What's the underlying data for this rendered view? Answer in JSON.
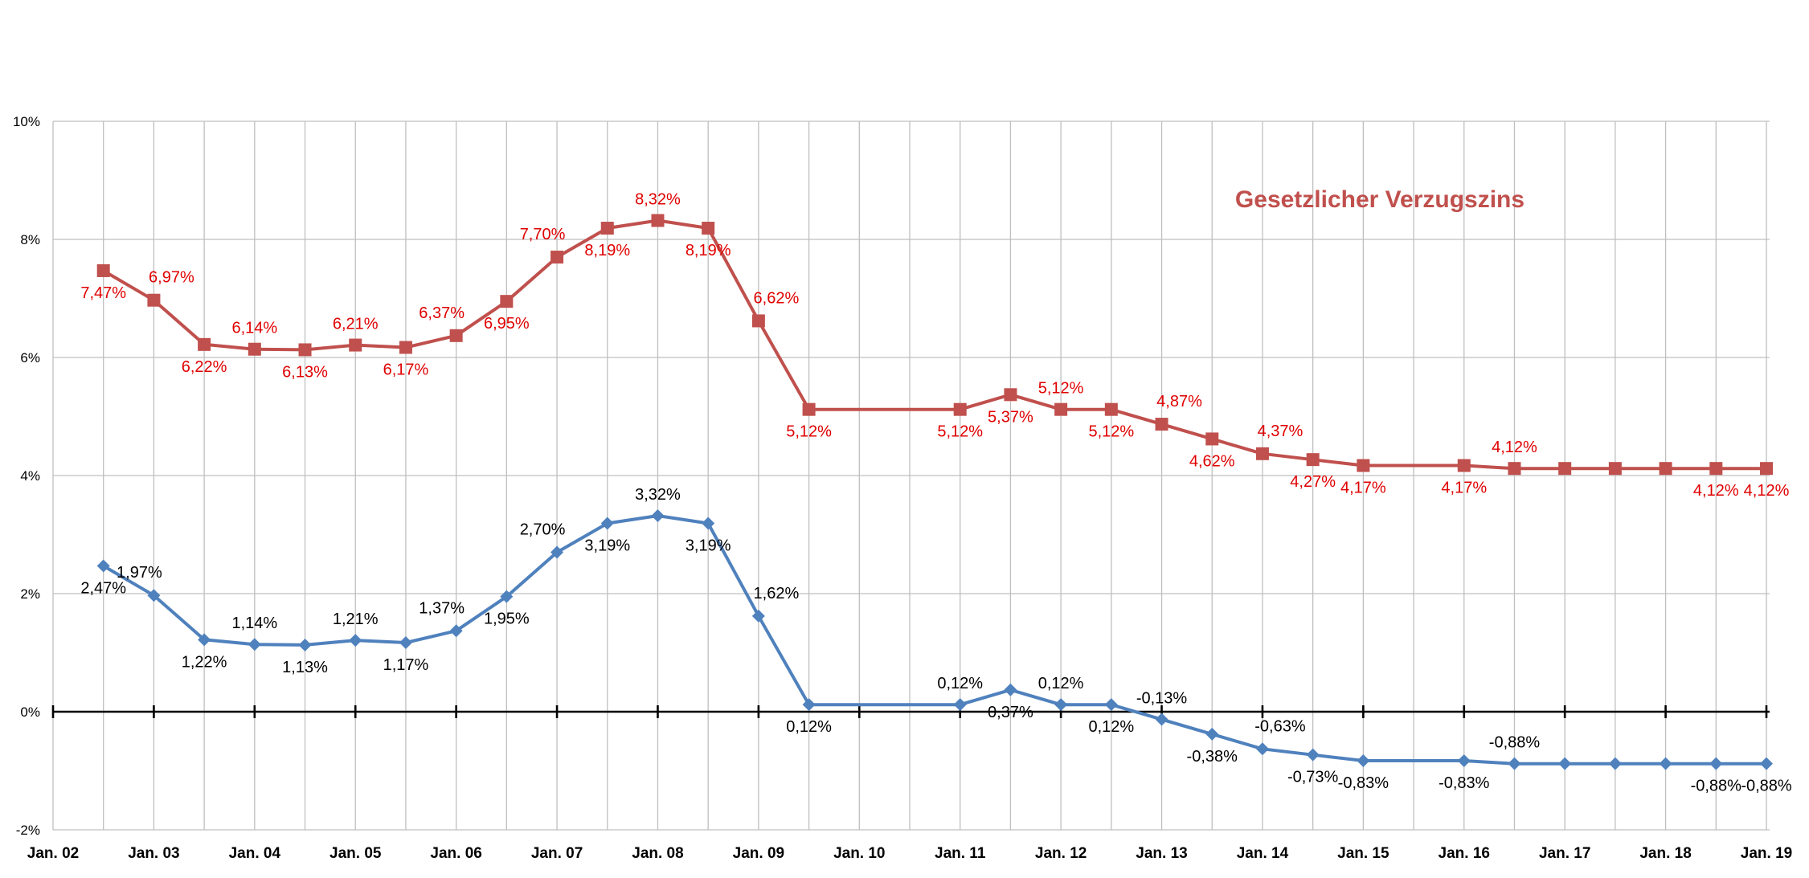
{
  "chart_data": {
    "type": "line",
    "annotation": "Gesetzlicher Verzugszins",
    "ylim": [
      -2,
      10
    ],
    "yticks": [
      -2,
      0,
      2,
      4,
      6,
      8,
      10
    ],
    "ytick_labels": [
      "-2%",
      "0%",
      "2%",
      "4%",
      "6%",
      "8%",
      "10%"
    ],
    "xlim": [
      2002.0,
      2019.0
    ],
    "xticks": [
      2002,
      2003,
      2004,
      2005,
      2006,
      2007,
      2008,
      2009,
      2010,
      2011,
      2012,
      2013,
      2014,
      2015,
      2016,
      2017,
      2018,
      2019
    ],
    "xtick_labels": [
      "Jan. 02",
      "Jan. 03",
      "Jan. 04",
      "Jan. 05",
      "Jan. 06",
      "Jan. 07",
      "Jan. 08",
      "Jan. 09",
      "Jan. 10",
      "Jan. 11",
      "Jan. 12",
      "Jan. 13",
      "Jan. 14",
      "Jan. 15",
      "Jan. 16",
      "Jan. 17",
      "Jan. 18",
      "Jan. 19"
    ],
    "grid": true,
    "colors": {
      "upper": "#c0504d",
      "lower": "#4f81bd",
      "upper_labels": "#e00000",
      "lower_labels": "#000000",
      "grid": "#bfbfbf",
      "zero_axis": "#000000"
    },
    "series": [
      {
        "key": "upper",
        "marker": "square",
        "x": [
          2002.5,
          2003.0,
          2003.5,
          2004.0,
          2004.5,
          2005.0,
          2005.5,
          2006.0,
          2006.5,
          2007.0,
          2007.5,
          2008.0,
          2008.5,
          2009.0,
          2009.5,
          2011.0,
          2011.5,
          2012.0,
          2012.5,
          2013.0,
          2013.5,
          2014.0,
          2014.5,
          2015.0,
          2016.0,
          2016.5,
          2017.0,
          2017.5,
          2018.0,
          2018.5,
          2019.0
        ],
        "values": [
          7.47,
          6.97,
          6.22,
          6.14,
          6.13,
          6.21,
          6.17,
          6.37,
          6.95,
          7.7,
          8.19,
          8.32,
          8.19,
          6.62,
          5.12,
          5.12,
          5.37,
          5.12,
          5.12,
          4.87,
          4.62,
          4.37,
          4.27,
          4.17,
          4.17,
          4.12,
          4.12,
          4.12,
          4.12,
          4.12,
          4.12
        ],
        "labels": [
          {
            "i": 0,
            "text": "7,47%",
            "pos": "below-left"
          },
          {
            "i": 1,
            "text": "6,97%",
            "pos": "above-right"
          },
          {
            "i": 2,
            "text": "6,22%",
            "pos": "below"
          },
          {
            "i": 3,
            "text": "6,14%",
            "pos": "above"
          },
          {
            "i": 4,
            "text": "6,13%",
            "pos": "below"
          },
          {
            "i": 5,
            "text": "6,21%",
            "pos": "above"
          },
          {
            "i": 6,
            "text": "6,17%",
            "pos": "below"
          },
          {
            "i": 7,
            "text": "6,37%",
            "pos": "above-left"
          },
          {
            "i": 8,
            "text": "6,95%",
            "pos": "below"
          },
          {
            "i": 9,
            "text": "7,70%",
            "pos": "above-left"
          },
          {
            "i": 10,
            "text": "8,19%",
            "pos": "below"
          },
          {
            "i": 11,
            "text": "8,32%",
            "pos": "above"
          },
          {
            "i": 12,
            "text": "8,19%",
            "pos": "below"
          },
          {
            "i": 13,
            "text": "6,62%",
            "pos": "above-right"
          },
          {
            "i": 14,
            "text": "5,12%",
            "pos": "below"
          },
          {
            "i": 15,
            "text": "5,12%",
            "pos": "below-left"
          },
          {
            "i": 16,
            "text": "5,37%",
            "pos": "below"
          },
          {
            "i": 17,
            "text": "5,12%",
            "pos": "above"
          },
          {
            "i": 18,
            "text": "5,12%",
            "pos": "below"
          },
          {
            "i": 19,
            "text": "4,87%",
            "pos": "above-right"
          },
          {
            "i": 20,
            "text": "4,62%",
            "pos": "below"
          },
          {
            "i": 21,
            "text": "4,37%",
            "pos": "above-right"
          },
          {
            "i": 22,
            "text": "4,27%",
            "pos": "below"
          },
          {
            "i": 23,
            "text": "4,17%",
            "pos": "below"
          },
          {
            "i": 24,
            "text": "4,17%",
            "pos": "below"
          },
          {
            "i": 25,
            "text": "4,12%",
            "pos": "above"
          },
          {
            "i": 29,
            "text": "4,12%",
            "pos": "below"
          },
          {
            "i": 30,
            "text": "4,12%",
            "pos": "below"
          }
        ]
      },
      {
        "key": "lower",
        "marker": "diamond",
        "x": [
          2002.5,
          2003.0,
          2003.5,
          2004.0,
          2004.5,
          2005.0,
          2005.5,
          2006.0,
          2006.5,
          2007.0,
          2007.5,
          2008.0,
          2008.5,
          2009.0,
          2009.5,
          2011.0,
          2011.5,
          2012.0,
          2012.5,
          2013.0,
          2013.5,
          2014.0,
          2014.5,
          2015.0,
          2016.0,
          2016.5,
          2017.0,
          2017.5,
          2018.0,
          2018.5,
          2019.0
        ],
        "values": [
          2.47,
          1.97,
          1.22,
          1.14,
          1.13,
          1.21,
          1.17,
          1.37,
          1.95,
          2.7,
          3.19,
          3.32,
          3.19,
          1.62,
          0.12,
          0.12,
          0.37,
          0.12,
          0.12,
          -0.13,
          -0.38,
          -0.63,
          -0.73,
          -0.83,
          -0.83,
          -0.88,
          -0.88,
          -0.88,
          -0.88,
          -0.88,
          -0.88
        ],
        "labels": [
          {
            "i": 0,
            "text": "2,47%",
            "pos": "below"
          },
          {
            "i": 1,
            "text": "1,97%",
            "pos": "above-left"
          },
          {
            "i": 2,
            "text": "1,22%",
            "pos": "below"
          },
          {
            "i": 3,
            "text": "1,14%",
            "pos": "above"
          },
          {
            "i": 4,
            "text": "1,13%",
            "pos": "below"
          },
          {
            "i": 5,
            "text": "1,21%",
            "pos": "above"
          },
          {
            "i": 6,
            "text": "1,17%",
            "pos": "below"
          },
          {
            "i": 7,
            "text": "1,37%",
            "pos": "above-left"
          },
          {
            "i": 8,
            "text": "1,95%",
            "pos": "below"
          },
          {
            "i": 9,
            "text": "2,70%",
            "pos": "above-left"
          },
          {
            "i": 10,
            "text": "3,19%",
            "pos": "below"
          },
          {
            "i": 11,
            "text": "3,32%",
            "pos": "above"
          },
          {
            "i": 12,
            "text": "3,19%",
            "pos": "below"
          },
          {
            "i": 13,
            "text": "1,62%",
            "pos": "above-right"
          },
          {
            "i": 14,
            "text": "0,12%",
            "pos": "below"
          },
          {
            "i": 15,
            "text": "0,12%",
            "pos": "above"
          },
          {
            "i": 16,
            "text": "0,37%",
            "pos": "below"
          },
          {
            "i": 17,
            "text": "0,12%",
            "pos": "above"
          },
          {
            "i": 18,
            "text": "0,12%",
            "pos": "below"
          },
          {
            "i": 19,
            "text": "-0,13%",
            "pos": "above"
          },
          {
            "i": 20,
            "text": "-0,38%",
            "pos": "below"
          },
          {
            "i": 21,
            "text": "-0,63%",
            "pos": "above-right"
          },
          {
            "i": 22,
            "text": "-0,73%",
            "pos": "below"
          },
          {
            "i": 23,
            "text": "-0,83%",
            "pos": "below"
          },
          {
            "i": 24,
            "text": "-0,83%",
            "pos": "below"
          },
          {
            "i": 25,
            "text": "-0,88%",
            "pos": "above"
          },
          {
            "i": 29,
            "text": "-0,88%",
            "pos": "below"
          },
          {
            "i": 30,
            "text": "-0,88%",
            "pos": "below"
          }
        ]
      }
    ]
  }
}
